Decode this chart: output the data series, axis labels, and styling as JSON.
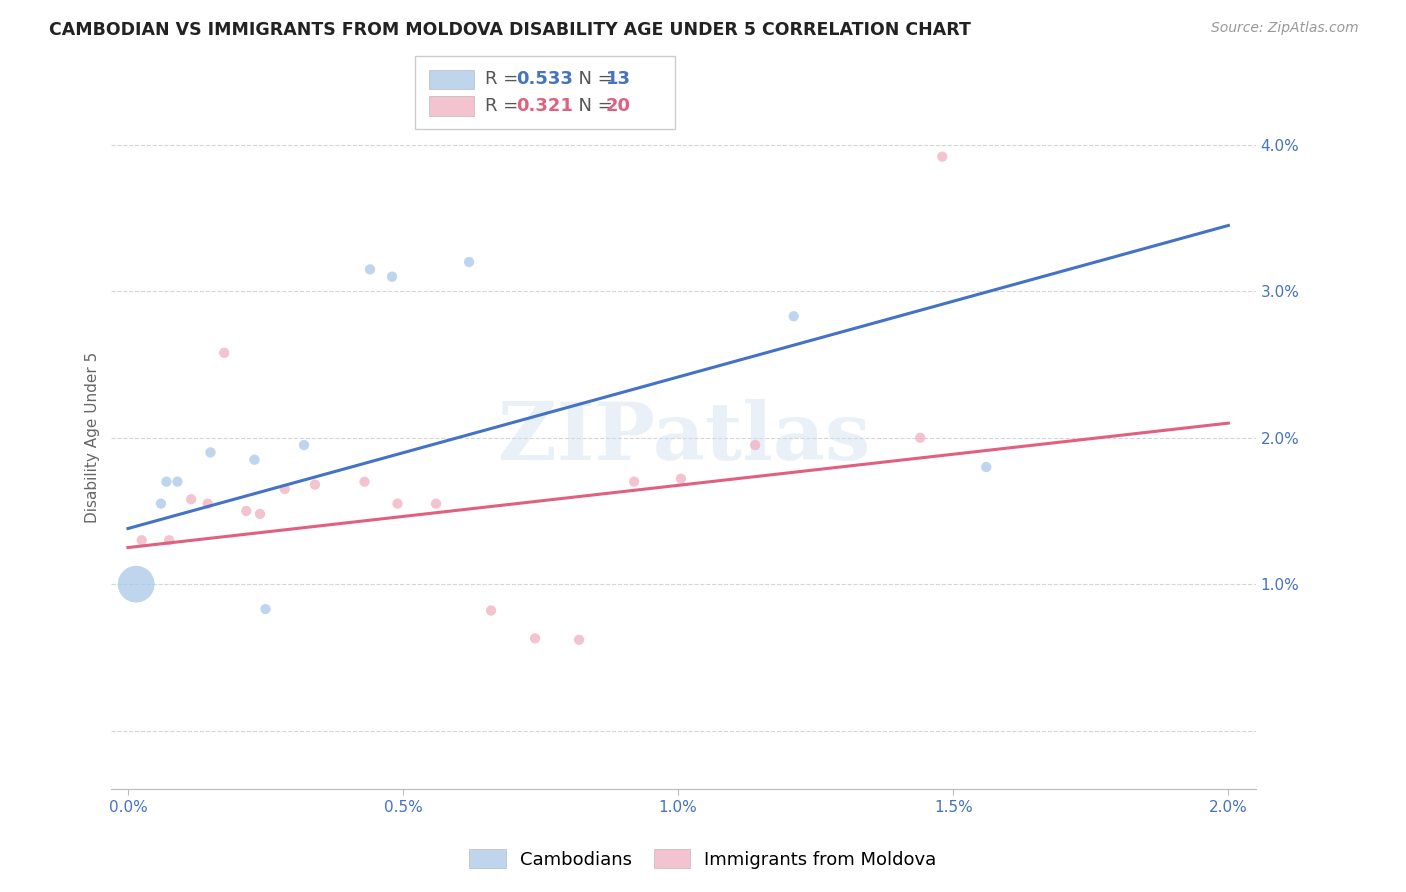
{
  "title": "CAMBODIAN VS IMMIGRANTS FROM MOLDOVA DISABILITY AGE UNDER 5 CORRELATION CHART",
  "source": "Source: ZipAtlas.com",
  "ylabel": "Disability Age Under 5",
  "xlim": [
    -0.0003,
    0.0205
  ],
  "ylim": [
    -0.004,
    0.044
  ],
  "yticks": [
    0.0,
    0.01,
    0.02,
    0.03,
    0.04
  ],
  "ytick_labels": [
    "",
    "1.0%",
    "2.0%",
    "3.0%",
    "4.0%"
  ],
  "xticks": [
    0.0,
    0.005,
    0.01,
    0.015,
    0.02
  ],
  "xtick_labels": [
    "0.0%",
    "0.5%",
    "1.0%",
    "1.5%",
    "2.0%"
  ],
  "cambodian_x": [
    0.00015,
    0.0006,
    0.0007,
    0.0009,
    0.0015,
    0.0023,
    0.0025,
    0.0032,
    0.0044,
    0.0048,
    0.0062,
    0.0121,
    0.0156
  ],
  "cambodian_y": [
    0.01,
    0.0155,
    0.017,
    0.017,
    0.019,
    0.0185,
    0.0083,
    0.0195,
    0.0315,
    0.031,
    0.032,
    0.0283,
    0.018
  ],
  "cambodian_size": [
    700,
    55,
    55,
    55,
    55,
    55,
    55,
    55,
    55,
    55,
    55,
    55,
    55
  ],
  "cambodian_color": "#a8c8e8",
  "cambodian_edge": "none",
  "cambodian_alpha": 0.75,
  "moldova_x": [
    0.00025,
    0.00075,
    0.00115,
    0.00145,
    0.00175,
    0.00215,
    0.0024,
    0.00285,
    0.0034,
    0.0043,
    0.0049,
    0.0056,
    0.0066,
    0.0074,
    0.0082,
    0.0092,
    0.01005,
    0.0114,
    0.0144,
    0.0148
  ],
  "moldova_y": [
    0.013,
    0.013,
    0.0158,
    0.0155,
    0.0258,
    0.015,
    0.0148,
    0.0165,
    0.0168,
    0.017,
    0.0155,
    0.0155,
    0.0082,
    0.0063,
    0.0062,
    0.017,
    0.0172,
    0.0195,
    0.02,
    0.0392
  ],
  "moldova_size": [
    55,
    55,
    55,
    55,
    55,
    55,
    55,
    55,
    55,
    55,
    55,
    55,
    55,
    55,
    55,
    55,
    55,
    55,
    55,
    55
  ],
  "moldova_color": "#f0b0c0",
  "moldova_edge": "none",
  "moldova_alpha": 0.75,
  "blue_line_x": [
    0.0,
    0.02
  ],
  "blue_line_y": [
    0.0138,
    0.0345
  ],
  "pink_line_x": [
    0.0,
    0.02
  ],
  "pink_line_y": [
    0.0125,
    0.021
  ],
  "blue_color": "#4472c4",
  "pink_color": "#e06080",
  "r1": "0.533",
  "n1": "13",
  "r2": "0.321",
  "n2": "20",
  "watermark": "ZIPatlas",
  "grid_color": "#d5d5d5",
  "background_color": "#ffffff",
  "title_fontsize": 12.5,
  "axis_label_fontsize": 11,
  "tick_fontsize": 11,
  "legend_fontsize": 13,
  "source_fontsize": 10,
  "bottom_legend_labels": [
    "Cambodians",
    "Immigrants from Moldova"
  ]
}
